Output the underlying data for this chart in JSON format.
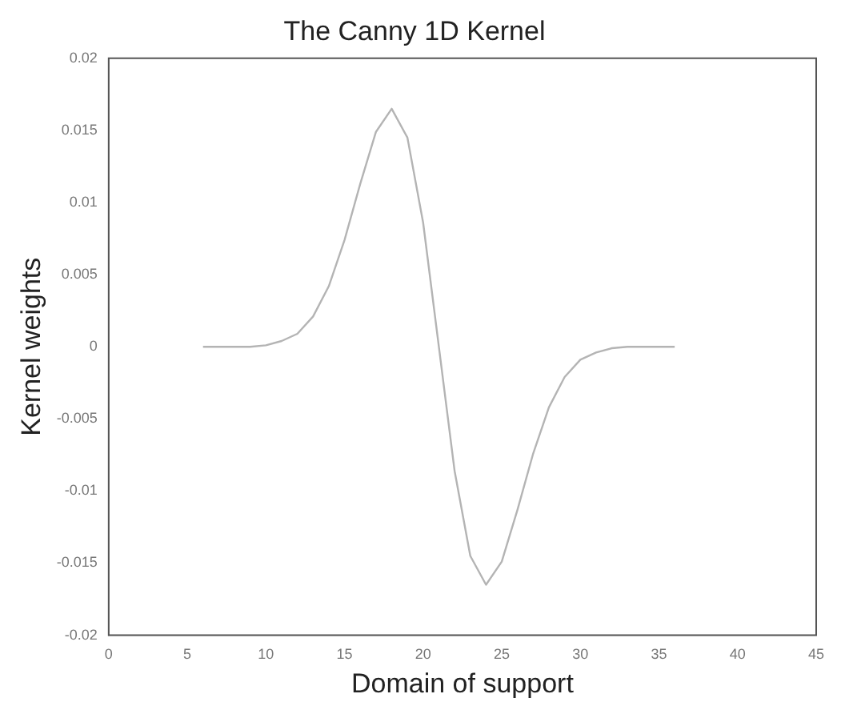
{
  "chart_data": {
    "type": "line",
    "title": "The Canny 1D Kernel",
    "xlabel": "Domain of support",
    "ylabel": "Kernel weights",
    "x": [
      6,
      7,
      8,
      9,
      10,
      11,
      12,
      13,
      14,
      15,
      16,
      17,
      18,
      19,
      20,
      21,
      22,
      23,
      24,
      25,
      26,
      27,
      28,
      29,
      30,
      31,
      32,
      33,
      34,
      35,
      36
    ],
    "series": [
      {
        "color": "#b4b4b4",
        "values": [
          0,
          0,
          0,
          0,
          0.0001,
          0.0004,
          0.0009,
          0.0021,
          0.0042,
          0.0074,
          0.0113,
          0.0149,
          0.0165,
          0.0145,
          0.0086,
          0,
          -0.0086,
          -0.0145,
          -0.0165,
          -0.0149,
          -0.0113,
          -0.0074,
          -0.0042,
          -0.0021,
          -0.0009,
          -0.0004,
          -0.0001,
          0,
          0,
          0,
          0
        ]
      }
    ],
    "xlim": [
      0,
      45
    ],
    "xticks": [
      0,
      5,
      10,
      15,
      20,
      25,
      30,
      35,
      40,
      45
    ],
    "ylim": [
      -0.02,
      0.02
    ],
    "yticks": [
      -0.02,
      -0.015,
      -0.01,
      -0.005,
      0,
      0.005,
      0.01,
      0.015,
      0.02
    ],
    "grid": false,
    "legend": false,
    "marker": "none",
    "line_style": "solid"
  }
}
